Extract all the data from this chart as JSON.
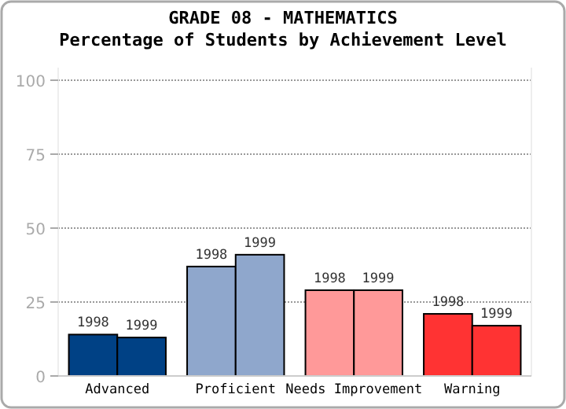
{
  "chart_data": {
    "type": "bar",
    "title": "GRADE 08 - MATHEMATICS",
    "subtitle": "Percentage of Students by Achievement Level",
    "categories": [
      "Advanced",
      "Proficient",
      "Needs Improvement",
      "Warning"
    ],
    "series": [
      {
        "name": "1998",
        "colors": [
          "#004185",
          "#8fa7cc",
          "#ff9999",
          "#ff3333"
        ],
        "values": [
          14,
          37,
          29,
          21
        ]
      },
      {
        "name": "1999",
        "colors": [
          "#004185",
          "#8fa7cc",
          "#ff9999",
          "#ff3333"
        ],
        "values": [
          13,
          41,
          29,
          17
        ]
      }
    ],
    "ylim": [
      0,
      100
    ],
    "yticks": [
      0,
      25,
      50,
      75,
      100
    ],
    "grid": "y"
  }
}
